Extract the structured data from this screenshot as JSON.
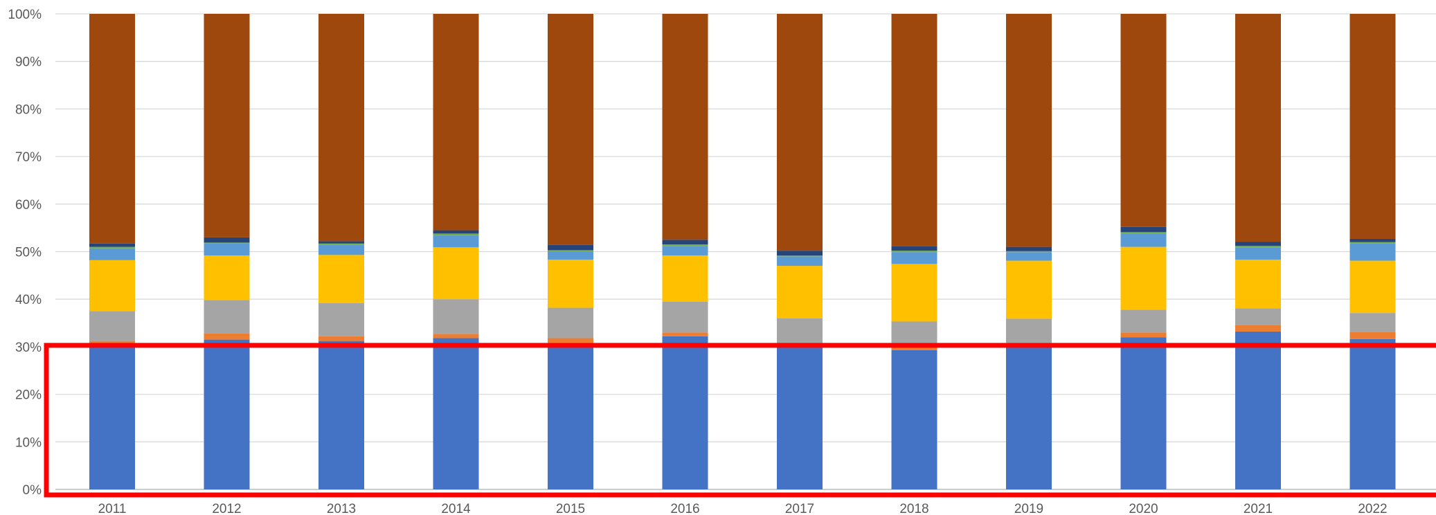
{
  "chart_data": {
    "type": "bar",
    "stacked": "percent",
    "title": "",
    "xlabel": "",
    "ylabel": "",
    "categories": [
      "2011",
      "2012",
      "2013",
      "2014",
      "2015",
      "2016",
      "2017",
      "2018",
      "2019",
      "2020",
      "2021",
      "2022"
    ],
    "y_ticks": [
      "0%",
      "10%",
      "20%",
      "30%",
      "40%",
      "50%",
      "60%",
      "70%",
      "80%",
      "90%",
      "100%"
    ],
    "ylim": [
      0,
      100
    ],
    "grid": true,
    "legend": "none",
    "series": [
      {
        "color": "#4472C4",
        "values": [
          30.0,
          31.5,
          31.2,
          31.8,
          30.8,
          32.2,
          30.0,
          29.3,
          30.0,
          32.0,
          33.2,
          31.6
        ]
      },
      {
        "color": "#ED7D31",
        "values": [
          1.2,
          1.3,
          1.0,
          0.9,
          1.0,
          0.8,
          0.4,
          1.5,
          0.8,
          1.0,
          1.3,
          1.5
        ]
      },
      {
        "color": "#A5A5A5",
        "values": [
          6.3,
          7.0,
          7.0,
          7.3,
          6.4,
          6.5,
          5.6,
          4.5,
          5.1,
          4.8,
          3.6,
          4.0
        ]
      },
      {
        "color": "#FFC000",
        "values": [
          10.7,
          9.4,
          10.1,
          10.9,
          10.1,
          9.7,
          11.0,
          12.1,
          12.2,
          13.2,
          10.2,
          11.0
        ]
      },
      {
        "color": "#5B9BD5",
        "values": [
          2.5,
          2.5,
          2.2,
          2.5,
          1.8,
          2.0,
          2.0,
          2.5,
          1.8,
          2.8,
          2.6,
          3.6
        ]
      },
      {
        "color": "#70AD47",
        "values": [
          0.3,
          0.2,
          0.2,
          0.4,
          0.2,
          0.3,
          0.2,
          0.3,
          0.2,
          0.3,
          0.3,
          0.3
        ]
      },
      {
        "color": "#264478",
        "values": [
          0.7,
          1.1,
          0.5,
          0.7,
          1.1,
          1.0,
          1.0,
          0.9,
          0.9,
          1.1,
          0.9,
          0.7
        ]
      },
      {
        "color": "#9E480E",
        "values": [
          48.3,
          47.0,
          47.8,
          45.5,
          48.6,
          47.5,
          49.8,
          48.9,
          49.0,
          44.8,
          47.9,
          47.3
        ]
      }
    ],
    "highlight_box": {
      "color": "#FF0000",
      "from": 0,
      "to": 30
    }
  }
}
